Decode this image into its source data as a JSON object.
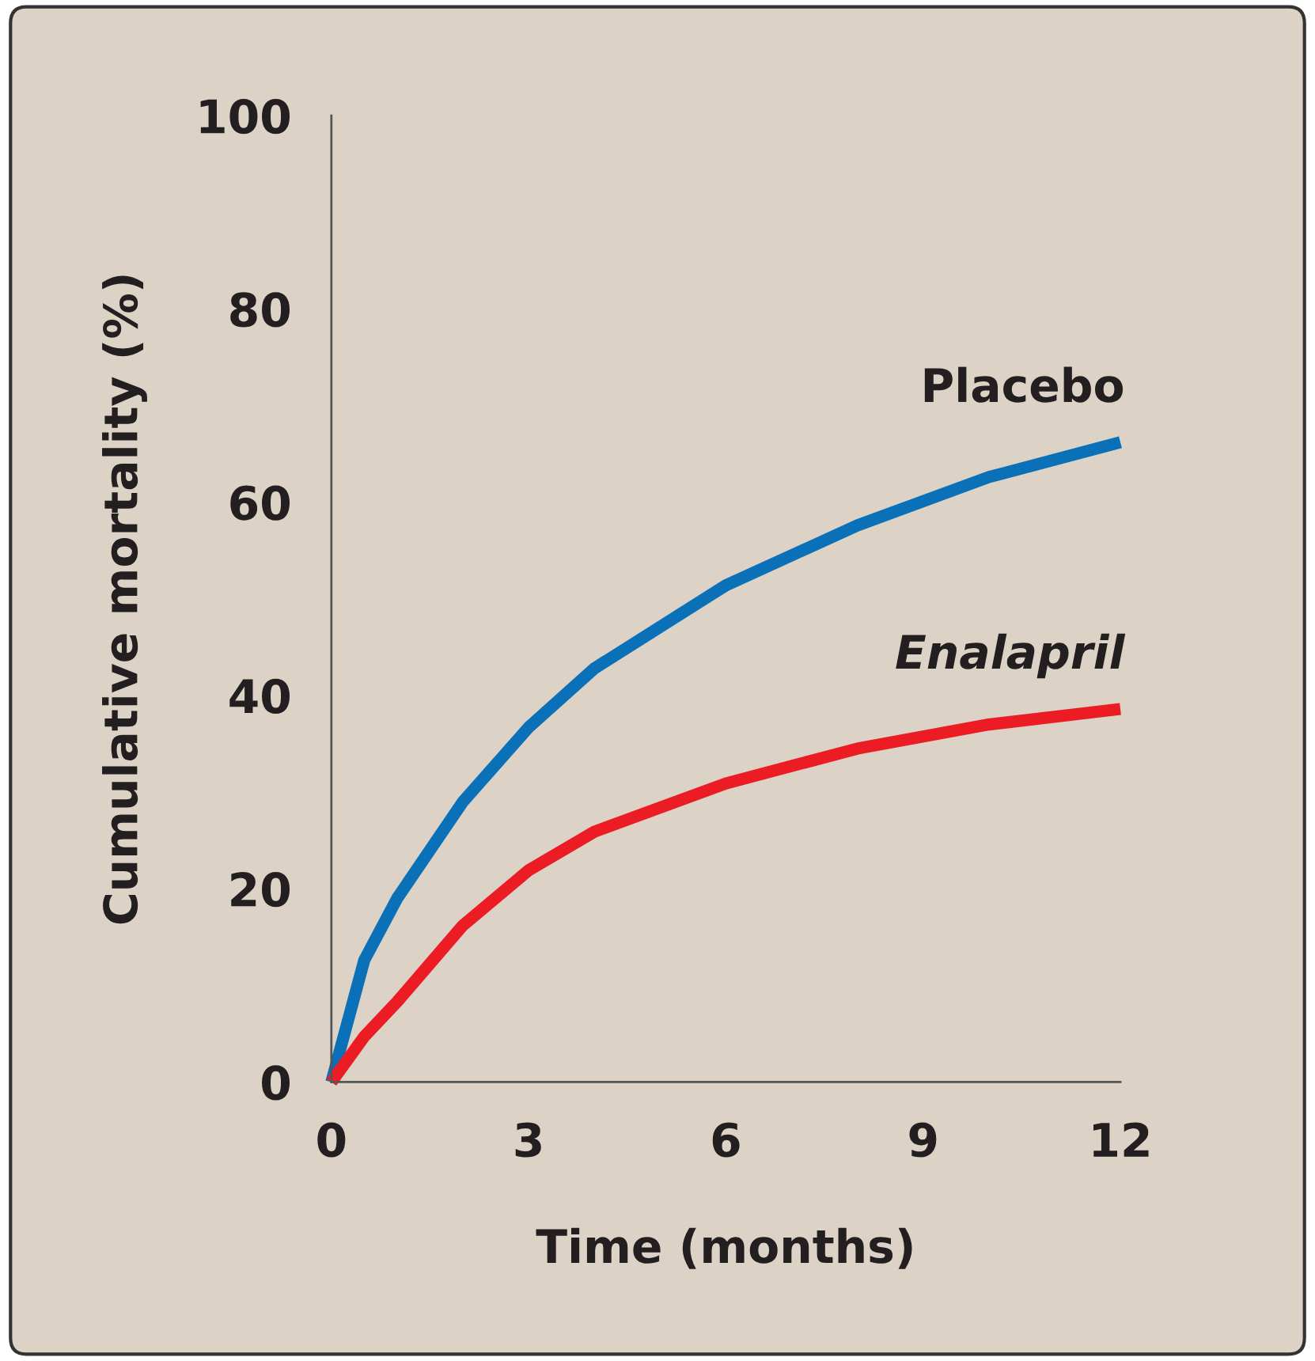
{
  "chart_data": {
    "type": "line",
    "xlabel": "Time (months)",
    "ylabel": "Cumulative mortality (%)",
    "x": [
      0,
      0.5,
      1,
      2,
      3,
      4,
      6,
      8,
      10,
      12
    ],
    "series": [
      {
        "name": "Placebo",
        "color": "#0a70b8",
        "values": [
          0,
          12.6,
          19,
          29,
          36.7,
          42.8,
          51.4,
          57.6,
          62.6,
          66.2
        ]
      },
      {
        "name": "Enalapril",
        "color": "#ec1c24",
        "values": [
          0,
          4.7,
          8.3,
          16.2,
          21.9,
          25.9,
          30.9,
          34.5,
          37,
          38.6
        ]
      }
    ],
    "xlim": [
      0,
      12
    ],
    "ylim": [
      0,
      100
    ],
    "xticks": [
      0,
      3,
      6,
      9,
      12
    ],
    "yticks": [
      0,
      20,
      40,
      60,
      80,
      100
    ],
    "grid": false,
    "legend": false,
    "marker": "none",
    "line_style": "solid"
  }
}
